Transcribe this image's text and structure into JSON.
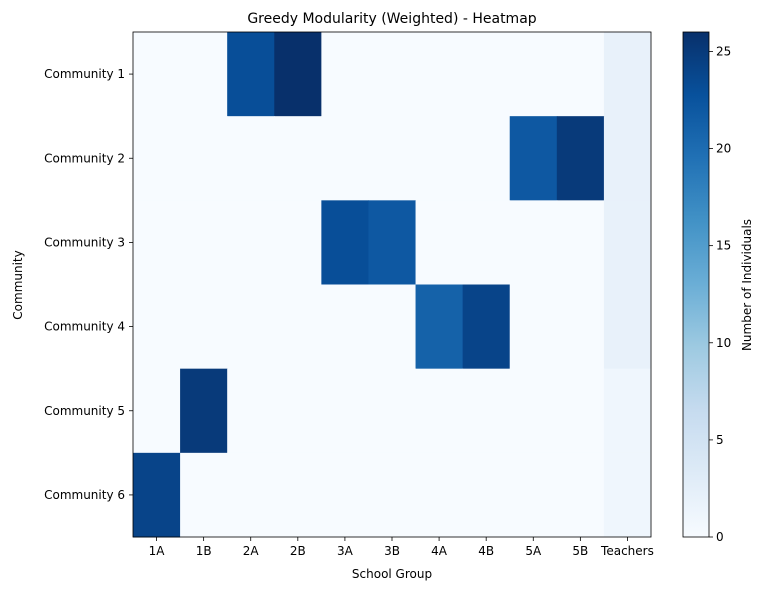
{
  "chart_data": {
    "type": "heatmap",
    "title": "Greedy Modularity (Weighted) - Heatmap",
    "xlabel": "School Group",
    "ylabel": "Community",
    "x_categories": [
      "1A",
      "1B",
      "2A",
      "2B",
      "3A",
      "3B",
      "4A",
      "4B",
      "5A",
      "5B",
      "Teachers"
    ],
    "y_categories": [
      "Community 1",
      "Community 2",
      "Community 3",
      "Community 4",
      "Community 5",
      "Community 6"
    ],
    "values": [
      [
        0,
        0,
        23,
        26,
        0,
        0,
        0,
        0,
        0,
        0,
        2
      ],
      [
        0,
        0,
        0,
        0,
        0,
        0,
        0,
        0,
        22,
        25,
        2
      ],
      [
        0,
        0,
        0,
        0,
        23,
        22,
        0,
        0,
        0,
        0,
        2
      ],
      [
        0,
        0,
        0,
        0,
        0,
        0,
        21,
        24,
        0,
        0,
        2
      ],
      [
        0,
        25,
        0,
        0,
        0,
        0,
        0,
        0,
        0,
        0,
        1
      ],
      [
        24,
        0,
        0,
        0,
        0,
        0,
        0,
        0,
        0,
        0,
        1
      ]
    ],
    "colorscale": "Blues",
    "vmin": 0,
    "vmax": 26,
    "colorbar": {
      "label": "Number of Individuals",
      "ticks": [
        0,
        5,
        10,
        15,
        20,
        25
      ]
    }
  }
}
